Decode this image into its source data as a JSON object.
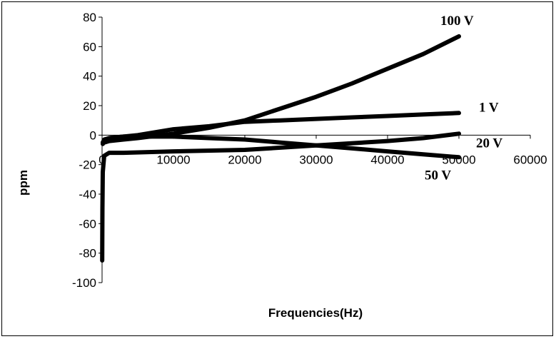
{
  "chart_data": {
    "type": "line",
    "title": "",
    "xlabel": "Frequencies(Hz)",
    "ylabel": "ppm",
    "xlim": [
      0,
      60000
    ],
    "ylim": [
      -100,
      80
    ],
    "x_ticks": [
      0,
      10000,
      20000,
      30000,
      40000,
      50000,
      60000
    ],
    "y_ticks": [
      80,
      60,
      40,
      20,
      0,
      -20,
      -40,
      -60,
      -80,
      -100
    ],
    "grid": false,
    "legend": "none",
    "line_color": "#000000",
    "series": [
      {
        "name": "100 V",
        "x": [
          100,
          300,
          1000,
          3000,
          5000,
          10000,
          15000,
          20000,
          25000,
          30000,
          35000,
          40000,
          45000,
          50000
        ],
        "y": [
          -5,
          -5,
          -4,
          -3,
          -2,
          1,
          5,
          10,
          18,
          26,
          35,
          45,
          55,
          67
        ]
      },
      {
        "name": "1 V",
        "x": [
          100,
          500,
          1000,
          3000,
          5000,
          10000,
          15000,
          20000,
          25000,
          30000,
          35000,
          40000,
          45000,
          50000
        ],
        "y": [
          -6,
          -3,
          -2,
          -1,
          0,
          4,
          6,
          9,
          10,
          11,
          12,
          13,
          14,
          15
        ]
      },
      {
        "name": "20 V",
        "x": [
          20,
          50,
          100,
          300,
          1000,
          3000,
          10000,
          20000,
          30000,
          40000,
          45000,
          50000
        ],
        "y": [
          -85,
          -50,
          -25,
          -14,
          -12,
          -12,
          -11,
          -10,
          -7,
          -4,
          -2,
          1
        ]
      },
      {
        "name": "50 V",
        "x": [
          100,
          300,
          1000,
          3000,
          5000,
          10000,
          15000,
          20000,
          25000,
          30000,
          35000,
          40000,
          45000,
          50000
        ],
        "y": [
          -5,
          -3,
          -2,
          -1,
          -1,
          -1,
          -2,
          -3,
          -5,
          -7,
          -9,
          -11,
          -13,
          -15
        ]
      }
    ]
  }
}
